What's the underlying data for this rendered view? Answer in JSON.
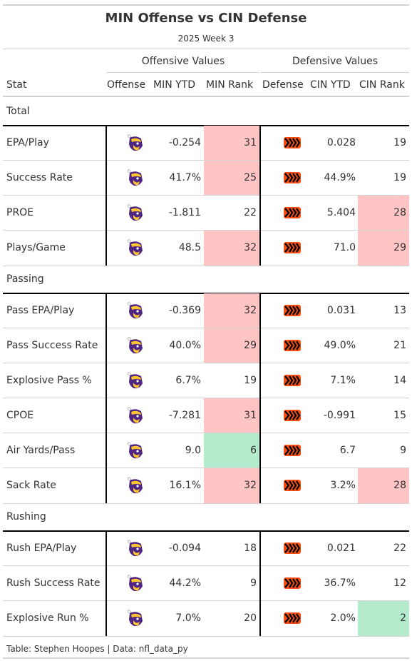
{
  "title": "MIN Offense vs CIN Defense",
  "subtitle": "2025 Week 3",
  "spanners": {
    "offensive": "Offensive Values",
    "defensive": "Defensive Values"
  },
  "columns": {
    "stat": "Stat",
    "offense": "Offense",
    "min_ytd": "MIN YTD",
    "min_rank": "MIN Rank",
    "defense": "Defense",
    "cin_ytd": "CIN YTD",
    "cin_rank": "CIN Rank"
  },
  "colors": {
    "bad": "#ffc4c4",
    "good": "#b4ebcc",
    "vikings_purple": "#4F2683",
    "vikings_gold": "#FFC62F",
    "bengals_orange": "#FB4F14",
    "bengals_black": "#000000"
  },
  "groups": [
    {
      "label": "Total",
      "rows": [
        {
          "stat": "EPA/Play",
          "min_ytd": "-0.254",
          "min_rank": "31",
          "cin_ytd": "0.028",
          "cin_rank": "19",
          "min_hl": "bad",
          "cin_hl": ""
        },
        {
          "stat": "Success Rate",
          "min_ytd": "41.7%",
          "min_rank": "25",
          "cin_ytd": "44.9%",
          "cin_rank": "19",
          "min_hl": "bad",
          "cin_hl": ""
        },
        {
          "stat": "PROE",
          "min_ytd": "-1.811",
          "min_rank": "22",
          "cin_ytd": "5.404",
          "cin_rank": "28",
          "min_hl": "",
          "cin_hl": "bad"
        },
        {
          "stat": "Plays/Game",
          "min_ytd": "48.5",
          "min_rank": "32",
          "cin_ytd": "71.0",
          "cin_rank": "29",
          "min_hl": "bad",
          "cin_hl": "bad"
        }
      ]
    },
    {
      "label": "Passing",
      "rows": [
        {
          "stat": "Pass EPA/Play",
          "min_ytd": "-0.369",
          "min_rank": "32",
          "cin_ytd": "0.031",
          "cin_rank": "13",
          "min_hl": "bad",
          "cin_hl": ""
        },
        {
          "stat": "Pass Success Rate",
          "min_ytd": "40.0%",
          "min_rank": "29",
          "cin_ytd": "49.0%",
          "cin_rank": "21",
          "min_hl": "bad",
          "cin_hl": ""
        },
        {
          "stat": "Explosive Pass %",
          "min_ytd": "6.7%",
          "min_rank": "19",
          "cin_ytd": "7.1%",
          "cin_rank": "14",
          "min_hl": "",
          "cin_hl": ""
        },
        {
          "stat": "CPOE",
          "min_ytd": "-7.281",
          "min_rank": "31",
          "cin_ytd": "-0.991",
          "cin_rank": "15",
          "min_hl": "bad",
          "cin_hl": ""
        },
        {
          "stat": "Air Yards/Pass",
          "min_ytd": "9.0",
          "min_rank": "6",
          "cin_ytd": "6.7",
          "cin_rank": "9",
          "min_hl": "good",
          "cin_hl": ""
        },
        {
          "stat": "Sack Rate",
          "min_ytd": "16.1%",
          "min_rank": "32",
          "cin_ytd": "3.2%",
          "cin_rank": "28",
          "min_hl": "bad",
          "cin_hl": "bad"
        }
      ]
    },
    {
      "label": "Rushing",
      "rows": [
        {
          "stat": "Rush EPA/Play",
          "min_ytd": "-0.094",
          "min_rank": "18",
          "cin_ytd": "0.021",
          "cin_rank": "22",
          "min_hl": "",
          "cin_hl": ""
        },
        {
          "stat": "Rush Success Rate",
          "min_ytd": "44.2%",
          "min_rank": "9",
          "cin_ytd": "36.7%",
          "cin_rank": "12",
          "min_hl": "",
          "cin_hl": ""
        },
        {
          "stat": "Explosive Run %",
          "min_ytd": "7.0%",
          "min_rank": "20",
          "cin_ytd": "2.0%",
          "cin_rank": "2",
          "min_hl": "",
          "cin_hl": "good"
        }
      ]
    }
  ],
  "footer": "Table: Stephen Hoopes | Data: nfl_data_py",
  "icons": {
    "offense": "vikings-logo-icon",
    "defense": "bengals-logo-icon"
  }
}
